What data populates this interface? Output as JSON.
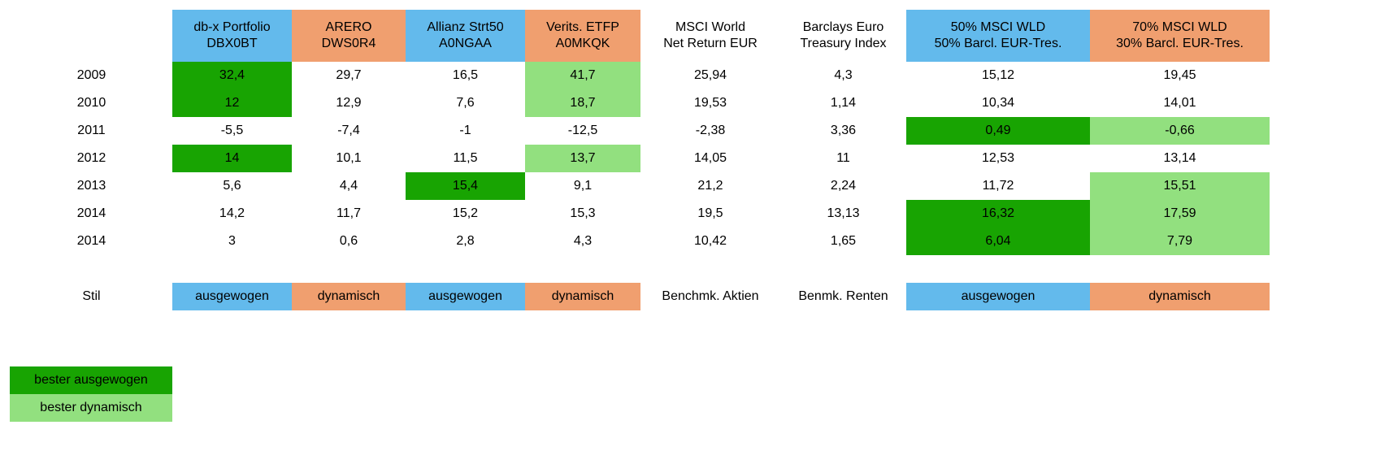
{
  "chart_data": {
    "type": "table",
    "columns": [
      {
        "line1": "db-x Portfolio",
        "line2": "DBX0BT",
        "color": "#63baec"
      },
      {
        "line1": "ARERO",
        "line2": "DWS0R4",
        "color": "#f09f6f"
      },
      {
        "line1": "Allianz Strt50",
        "line2": "A0NGAA",
        "color": "#63baec"
      },
      {
        "line1": "Verits. ETFP",
        "line2": "A0MKQK",
        "color": "#f09f6f"
      },
      {
        "line1": "MSCI World",
        "line2": "Net Return EUR",
        "color": ""
      },
      {
        "line1": "Barclays Euro",
        "line2": "Treasury Index",
        "color": ""
      },
      {
        "line1": "50% MSCI WLD",
        "line2": "50% Barcl. EUR-Tres.",
        "color": "#63baec"
      },
      {
        "line1": "70% MSCI WLD",
        "line2": "30% Barcl. EUR-Tres.",
        "color": "#f09f6f"
      }
    ],
    "rows": [
      {
        "year": "2009",
        "values": [
          "32,4",
          "29,7",
          "16,5",
          "41,7",
          "25,94",
          "4,3",
          "15,12",
          "19,45"
        ],
        "highlight": [
          "dark",
          "",
          "",
          "light",
          "",
          "",
          "",
          ""
        ]
      },
      {
        "year": "2010",
        "values": [
          "12",
          "12,9",
          "7,6",
          "18,7",
          "19,53",
          "1,14",
          "10,34",
          "14,01"
        ],
        "highlight": [
          "dark",
          "",
          "",
          "light",
          "",
          "",
          "",
          ""
        ]
      },
      {
        "year": "2011",
        "values": [
          "-5,5",
          "-7,4",
          "-1",
          "-12,5",
          "-2,38",
          "3,36",
          "0,49",
          "-0,66"
        ],
        "highlight": [
          "",
          "",
          "",
          "",
          "",
          "",
          "dark",
          "light"
        ]
      },
      {
        "year": "2012",
        "values": [
          "14",
          "10,1",
          "11,5",
          "13,7",
          "14,05",
          "11",
          "12,53",
          "13,14"
        ],
        "highlight": [
          "dark",
          "",
          "",
          "light",
          "",
          "",
          "",
          ""
        ]
      },
      {
        "year": "2013",
        "values": [
          "5,6",
          "4,4",
          "15,4",
          "9,1",
          "21,2",
          "2,24",
          "11,72",
          "15,51"
        ],
        "highlight": [
          "",
          "",
          "dark",
          "",
          "",
          "",
          "",
          "light"
        ]
      },
      {
        "year": "2014",
        "values": [
          "14,2",
          "11,7",
          "15,2",
          "15,3",
          "19,5",
          "13,13",
          "16,32",
          "17,59"
        ],
        "highlight": [
          "",
          "",
          "",
          "",
          "",
          "",
          "dark",
          "light"
        ]
      },
      {
        "year": "2014",
        "values": [
          "3",
          "0,6",
          "2,8",
          "4,3",
          "10,42",
          "1,65",
          "6,04",
          "7,79"
        ],
        "highlight": [
          "",
          "",
          "",
          "",
          "",
          "",
          "dark",
          "light"
        ]
      }
    ],
    "style_row": {
      "label": "Stil",
      "values": [
        "ausgewogen",
        "dynamisch",
        "ausgewogen",
        "dynamisch",
        "Benchmk. Aktien",
        "Benmk. Renten",
        "ausgewogen",
        "dynamisch"
      ]
    },
    "legend": [
      {
        "label": "bester ausgewogen",
        "color": "#18a402"
      },
      {
        "label": "bester dynamisch",
        "color": "#92e07f"
      }
    ]
  }
}
